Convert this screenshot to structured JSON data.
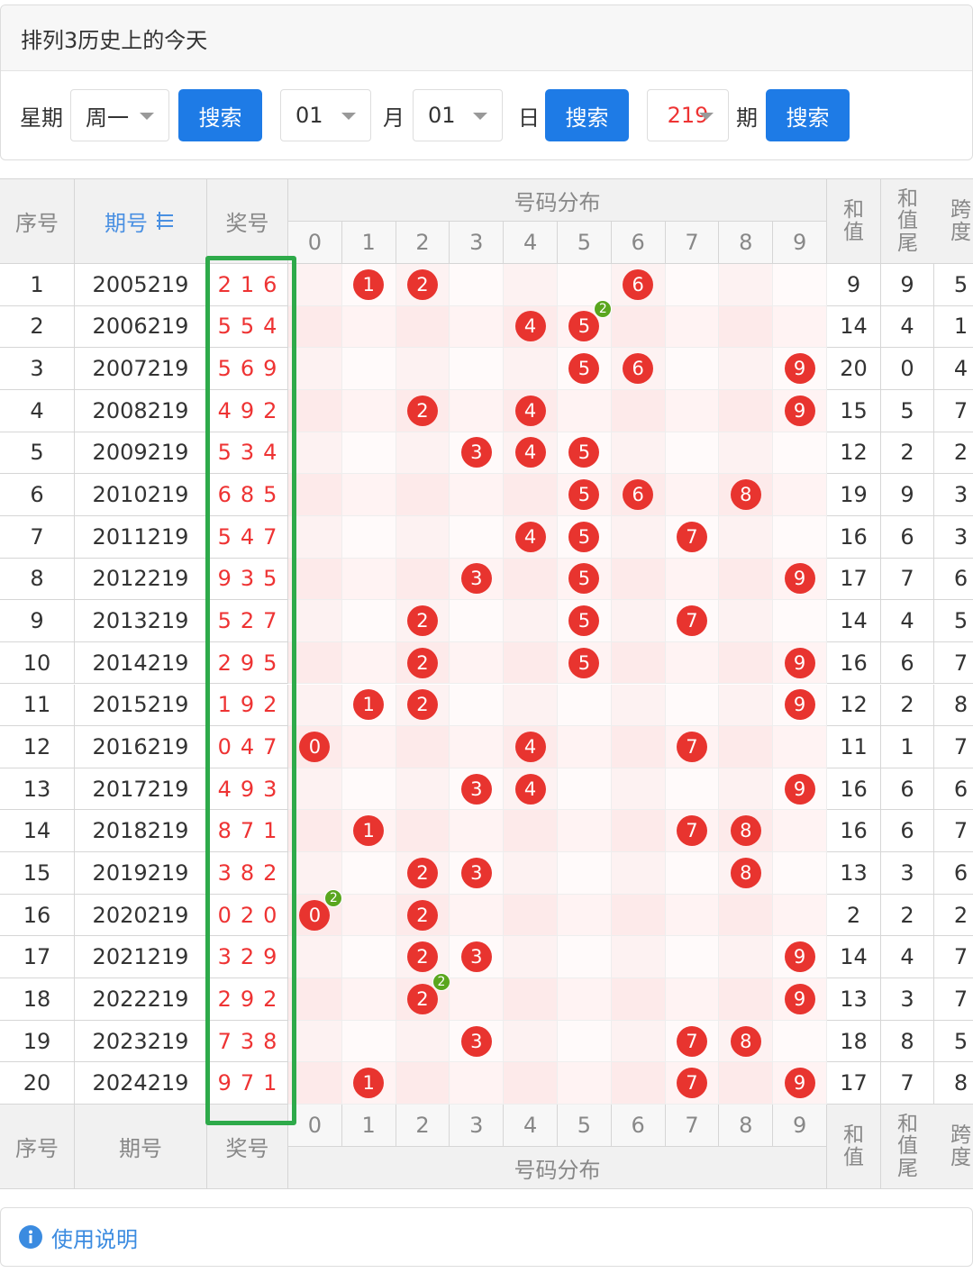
{
  "header": {
    "title": "排列3历史上的今天"
  },
  "search": {
    "weekday_label": "星期",
    "weekday": "周一",
    "month": "01",
    "month_label": "月",
    "day": "01",
    "day_label": "日",
    "issue": "219",
    "issue_label": "期",
    "buttons": [
      "搜索",
      "搜索",
      "搜索"
    ]
  },
  "table": {
    "columns": {
      "no": "序号",
      "issue": "期号",
      "nums": "奖号",
      "dist": "号码分布",
      "sum": "和值",
      "tail": "和值尾",
      "span": "跨度"
    },
    "digits": [
      0,
      1,
      2,
      3,
      4,
      5,
      6,
      7,
      8,
      9
    ],
    "rows": [
      {
        "no": 1,
        "issue": "2005219",
        "nums": [
          2,
          1,
          6
        ],
        "sum": 9,
        "tail": 9,
        "span": 5
      },
      {
        "no": 2,
        "issue": "2006219",
        "nums": [
          5,
          5,
          4
        ],
        "sum": 14,
        "tail": 4,
        "span": 1,
        "repeat": 2
      },
      {
        "no": 3,
        "issue": "2007219",
        "nums": [
          5,
          6,
          9
        ],
        "sum": 20,
        "tail": 0,
        "span": 4
      },
      {
        "no": 4,
        "issue": "2008219",
        "nums": [
          4,
          9,
          2
        ],
        "sum": 15,
        "tail": 5,
        "span": 7
      },
      {
        "no": 5,
        "issue": "2009219",
        "nums": [
          5,
          3,
          4
        ],
        "sum": 12,
        "tail": 2,
        "span": 2
      },
      {
        "no": 6,
        "issue": "2010219",
        "nums": [
          6,
          8,
          5
        ],
        "sum": 19,
        "tail": 9,
        "span": 3
      },
      {
        "no": 7,
        "issue": "2011219",
        "nums": [
          5,
          4,
          7
        ],
        "sum": 16,
        "tail": 6,
        "span": 3
      },
      {
        "no": 8,
        "issue": "2012219",
        "nums": [
          9,
          3,
          5
        ],
        "sum": 17,
        "tail": 7,
        "span": 6
      },
      {
        "no": 9,
        "issue": "2013219",
        "nums": [
          5,
          2,
          7
        ],
        "sum": 14,
        "tail": 4,
        "span": 5
      },
      {
        "no": 10,
        "issue": "2014219",
        "nums": [
          2,
          9,
          5
        ],
        "sum": 16,
        "tail": 6,
        "span": 7
      },
      {
        "no": 11,
        "issue": "2015219",
        "nums": [
          1,
          9,
          2
        ],
        "sum": 12,
        "tail": 2,
        "span": 8
      },
      {
        "no": 12,
        "issue": "2016219",
        "nums": [
          0,
          4,
          7
        ],
        "sum": 11,
        "tail": 1,
        "span": 7
      },
      {
        "no": 13,
        "issue": "2017219",
        "nums": [
          4,
          9,
          3
        ],
        "sum": 16,
        "tail": 6,
        "span": 6
      },
      {
        "no": 14,
        "issue": "2018219",
        "nums": [
          8,
          7,
          1
        ],
        "sum": 16,
        "tail": 6,
        "span": 7
      },
      {
        "no": 15,
        "issue": "2019219",
        "nums": [
          3,
          8,
          2
        ],
        "sum": 13,
        "tail": 3,
        "span": 6
      },
      {
        "no": 16,
        "issue": "2020219",
        "nums": [
          0,
          2,
          0
        ],
        "sum": 2,
        "tail": 2,
        "span": 2,
        "repeat": 2
      },
      {
        "no": 17,
        "issue": "2021219",
        "nums": [
          3,
          2,
          9
        ],
        "sum": 14,
        "tail": 4,
        "span": 7
      },
      {
        "no": 18,
        "issue": "2022219",
        "nums": [
          2,
          9,
          2
        ],
        "sum": 13,
        "tail": 3,
        "span": 7,
        "repeat": 2
      },
      {
        "no": 19,
        "issue": "2023219",
        "nums": [
          7,
          3,
          8
        ],
        "sum": 18,
        "tail": 8,
        "span": 5
      },
      {
        "no": 20,
        "issue": "2024219",
        "nums": [
          9,
          7,
          1
        ],
        "sum": 17,
        "tail": 7,
        "span": 8
      }
    ],
    "footer": {
      "no": "序号",
      "issue": "期号",
      "nums": "奖号",
      "dist": "号码分布",
      "sum": "和值",
      "tail": "和值尾",
      "span": "跨度"
    }
  },
  "footer": {
    "help": "使用说明"
  }
}
